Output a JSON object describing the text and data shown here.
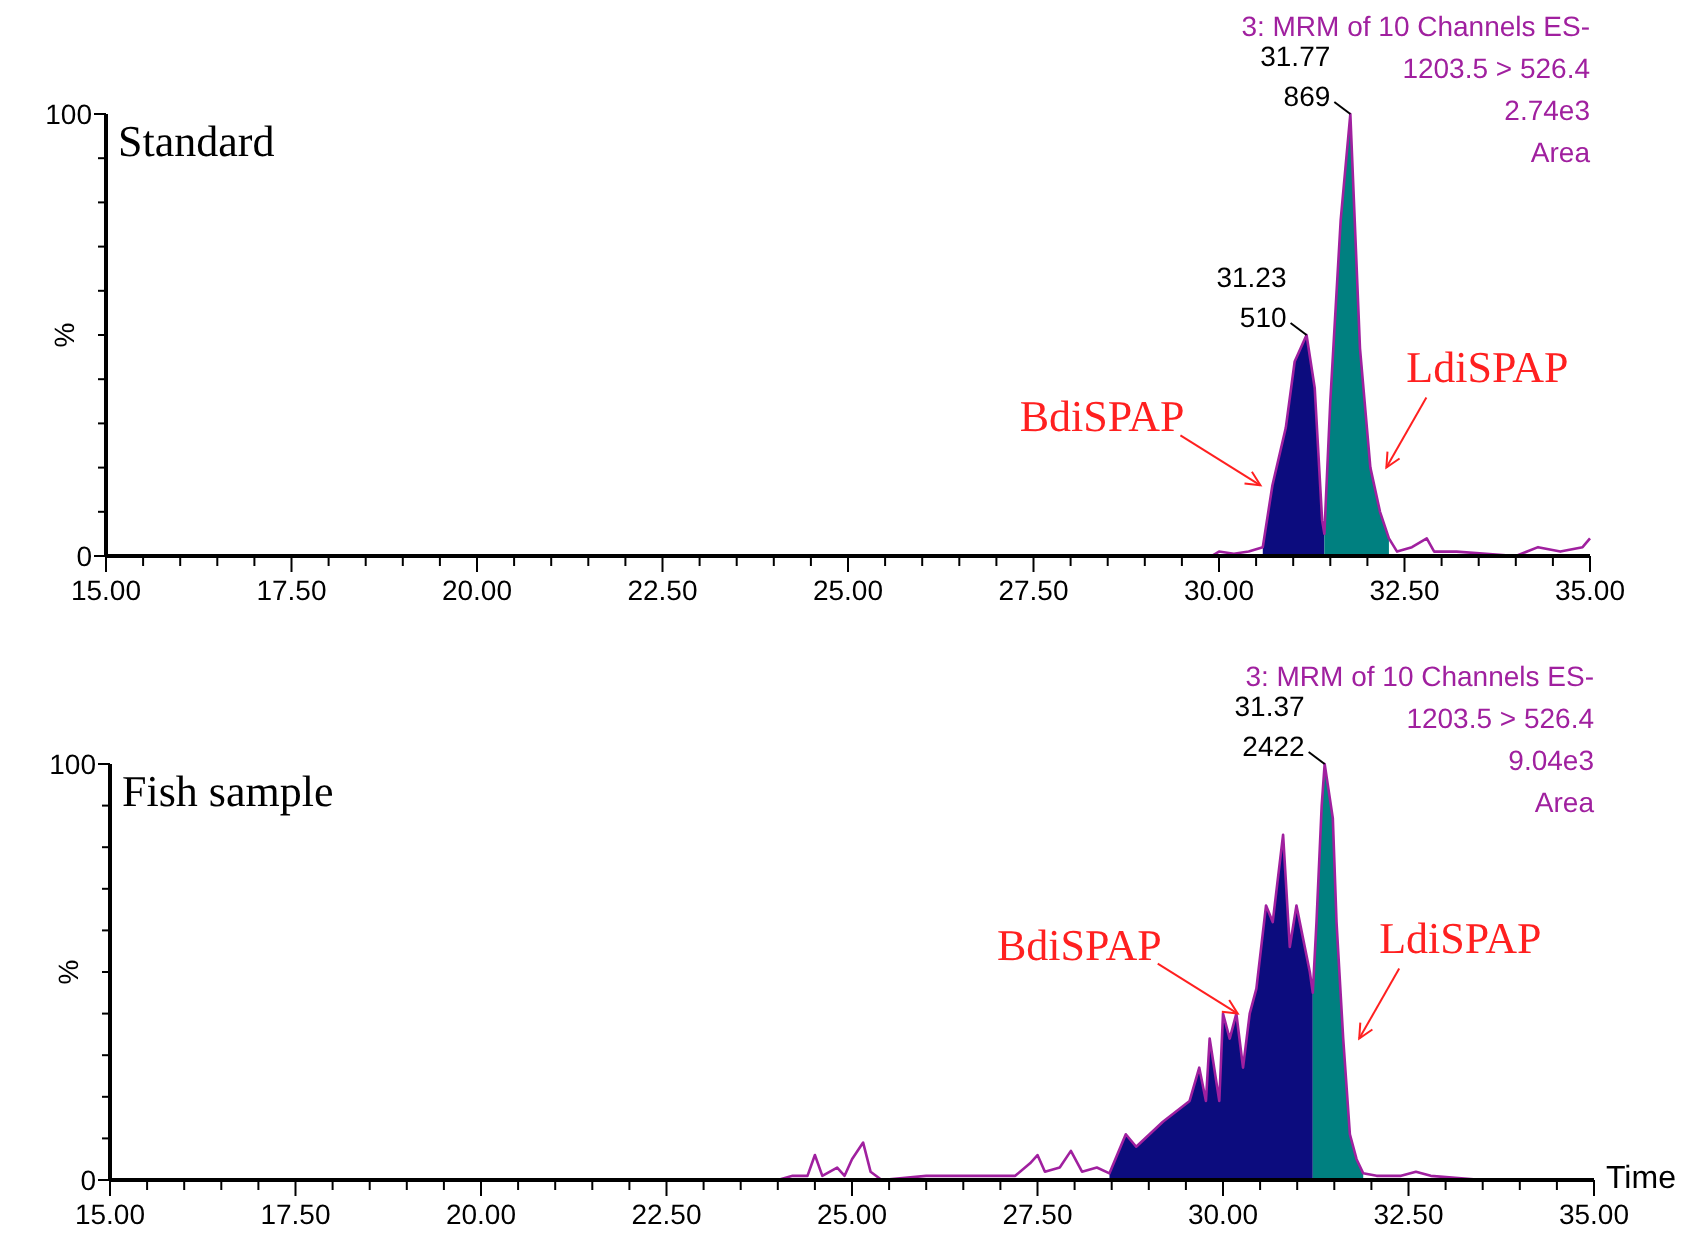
{
  "chart_data": [
    {
      "type": "line",
      "title": "Standard",
      "ylabel": "%",
      "xlim": [
        15,
        35
      ],
      "ylim": [
        0,
        100
      ],
      "xticks": [
        {
          "value": 15,
          "label": "15.00"
        },
        {
          "value": 15.5,
          "label": null
        },
        {
          "value": 16,
          "label": null
        },
        {
          "value": 16.5,
          "label": null
        },
        {
          "value": 17,
          "label": null
        },
        {
          "value": 17.5,
          "label": "17.50"
        },
        {
          "value": 18,
          "label": null
        },
        {
          "value": 18.5,
          "label": null
        },
        {
          "value": 19,
          "label": null
        },
        {
          "value": 19.5,
          "label": null
        },
        {
          "value": 20,
          "label": "20.00"
        },
        {
          "value": 20.5,
          "label": null
        },
        {
          "value": 21,
          "label": null
        },
        {
          "value": 21.5,
          "label": null
        },
        {
          "value": 22,
          "label": null
        },
        {
          "value": 22.5,
          "label": "22.50"
        },
        {
          "value": 23,
          "label": null
        },
        {
          "value": 23.5,
          "label": null
        },
        {
          "value": 24,
          "label": null
        },
        {
          "value": 24.5,
          "label": null
        },
        {
          "value": 25,
          "label": "25.00"
        },
        {
          "value": 25.5,
          "label": null
        },
        {
          "value": 26,
          "label": null
        },
        {
          "value": 26.5,
          "label": null
        },
        {
          "value": 27,
          "label": null
        },
        {
          "value": 27.5,
          "label": "27.50"
        },
        {
          "value": 28,
          "label": null
        },
        {
          "value": 28.5,
          "label": null
        },
        {
          "value": 29,
          "label": null
        },
        {
          "value": 29.5,
          "label": null
        },
        {
          "value": 30,
          "label": "30.00"
        },
        {
          "value": 30.5,
          "label": null
        },
        {
          "value": 31,
          "label": null
        },
        {
          "value": 31.5,
          "label": null
        },
        {
          "value": 32,
          "label": null
        },
        {
          "value": 32.5,
          "label": "32.50"
        },
        {
          "value": 33,
          "label": null
        },
        {
          "value": 33.5,
          "label": null
        },
        {
          "value": 34,
          "label": null
        },
        {
          "value": 34.5,
          "label": null
        },
        {
          "value": 35,
          "label": "35.00"
        }
      ],
      "yticks": [
        {
          "value": 0,
          "label": "0"
        },
        {
          "value": 10,
          "label": null
        },
        {
          "value": 20,
          "label": null
        },
        {
          "value": 30,
          "label": null
        },
        {
          "value": 40,
          "label": null
        },
        {
          "value": 50,
          "label": null
        },
        {
          "value": 60,
          "label": null
        },
        {
          "value": 70,
          "label": null
        },
        {
          "value": 80,
          "label": null
        },
        {
          "value": 90,
          "label": null
        },
        {
          "value": 100,
          "label": "100"
        }
      ],
      "series": [
        {
          "type": "area",
          "name": "BdiSPAP",
          "color": "#0c0c7e",
          "x": [
            30.59,
            30.72,
            30.9,
            31.02,
            31.18,
            31.29,
            31.39,
            31.42
          ],
          "values": [
            2,
            16,
            29,
            44,
            50,
            38,
            8,
            5
          ]
        },
        {
          "type": "area",
          "name": "LdiSPAP",
          "color": "#008080",
          "x": [
            31.42,
            31.5,
            31.64,
            31.77,
            31.9,
            32.04,
            32.17,
            32.29
          ],
          "values": [
            5,
            35,
            76,
            100,
            47,
            20,
            10,
            4
          ]
        },
        {
          "type": "line",
          "color": "#a0209f",
          "x": [
            20,
            29.9,
            30.0,
            30.2,
            30.4,
            30.59,
            30.72,
            30.9,
            31.02,
            31.18,
            31.29,
            31.39,
            31.42,
            31.5,
            31.64,
            31.77,
            31.9,
            32.04,
            32.17,
            32.29,
            32.4,
            32.6,
            32.8,
            32.9,
            33.2,
            34.0,
            34.3,
            34.6,
            34.9,
            35
          ],
          "values": [
            0,
            0,
            1,
            0.5,
            1,
            2,
            16,
            29,
            44,
            50,
            38,
            8,
            5,
            35,
            76,
            100,
            47,
            20,
            10,
            4,
            1,
            2,
            4,
            1,
            1,
            0,
            2,
            1,
            2,
            4
          ]
        }
      ],
      "annotations": [
        "3: MRM of 10 Channels ES-",
        "1203.5 > 526.4",
        "2.74e3",
        "Area",
        {
          "text": "31.77\n869",
          "x": 31.77,
          "y": 100
        },
        {
          "text": "31.23\n510",
          "x": 31.18,
          "y": 50
        }
      ]
    },
    {
      "type": "line",
      "title": "Fish sample",
      "ylabel": "%",
      "xlabel": "Time",
      "xlim": [
        15,
        35
      ],
      "ylim": [
        0,
        100
      ],
      "xticks": [
        {
          "value": 15,
          "label": "15.00"
        },
        {
          "value": 15.5,
          "label": null
        },
        {
          "value": 16,
          "label": null
        },
        {
          "value": 16.5,
          "label": null
        },
        {
          "value": 17,
          "label": null
        },
        {
          "value": 17.5,
          "label": "17.50"
        },
        {
          "value": 18,
          "label": null
        },
        {
          "value": 18.5,
          "label": null
        },
        {
          "value": 19,
          "label": null
        },
        {
          "value": 19.5,
          "label": null
        },
        {
          "value": 20,
          "label": "20.00"
        },
        {
          "value": 20.5,
          "label": null
        },
        {
          "value": 21,
          "label": null
        },
        {
          "value": 21.5,
          "label": null
        },
        {
          "value": 22,
          "label": null
        },
        {
          "value": 22.5,
          "label": "22.50"
        },
        {
          "value": 23,
          "label": null
        },
        {
          "value": 23.5,
          "label": null
        },
        {
          "value": 24,
          "label": null
        },
        {
          "value": 24.5,
          "label": null
        },
        {
          "value": 25,
          "label": "25.00"
        },
        {
          "value": 25.5,
          "label": null
        },
        {
          "value": 26,
          "label": null
        },
        {
          "value": 26.5,
          "label": null
        },
        {
          "value": 27,
          "label": null
        },
        {
          "value": 27.5,
          "label": "27.50"
        },
        {
          "value": 28,
          "label": null
        },
        {
          "value": 28.5,
          "label": null
        },
        {
          "value": 29,
          "label": null
        },
        {
          "value": 29.5,
          "label": null
        },
        {
          "value": 30,
          "label": "30.00"
        },
        {
          "value": 30.5,
          "label": null
        },
        {
          "value": 31,
          "label": null
        },
        {
          "value": 31.5,
          "label": null
        },
        {
          "value": 32,
          "label": null
        },
        {
          "value": 32.5,
          "label": "32.50"
        },
        {
          "value": 33,
          "label": null
        },
        {
          "value": 33.5,
          "label": null
        },
        {
          "value": 34,
          "label": null
        },
        {
          "value": 34.5,
          "label": null
        },
        {
          "value": 35,
          "label": "35.00"
        }
      ],
      "yticks": [
        {
          "value": 0,
          "label": "0"
        },
        {
          "value": 10,
          "label": null
        },
        {
          "value": 20,
          "label": null
        },
        {
          "value": 30,
          "label": null
        },
        {
          "value": 40,
          "label": null
        },
        {
          "value": 50,
          "label": null
        },
        {
          "value": 60,
          "label": null
        },
        {
          "value": 70,
          "label": null
        },
        {
          "value": 80,
          "label": null
        },
        {
          "value": 90,
          "label": null
        },
        {
          "value": 100,
          "label": "100"
        }
      ],
      "series": [
        {
          "type": "area",
          "name": "BdiSPAP",
          "color": "#0c0c7e",
          "x": [
            28.47,
            28.69,
            28.83,
            29.19,
            29.55,
            29.68,
            29.77,
            29.82,
            29.95,
            30.0,
            30.09,
            30.18,
            30.27,
            30.36,
            30.45,
            30.58,
            30.67,
            30.81,
            30.9,
            30.99,
            31.08,
            31.17,
            31.21
          ],
          "values": [
            1.6,
            11,
            8,
            14,
            19,
            27,
            19,
            34,
            19,
            40,
            34,
            40,
            27,
            40,
            46,
            66,
            62,
            83,
            56,
            66,
            58,
            50,
            45
          ]
        },
        {
          "type": "area",
          "name": "LdiSPAP",
          "color": "#008080",
          "x": [
            31.21,
            31.26,
            31.33,
            31.37,
            31.48,
            31.53,
            31.62,
            31.71,
            31.8,
            31.89
          ],
          "values": [
            45,
            62,
            90,
            100,
            87,
            62,
            34,
            11,
            5,
            1.6
          ]
        },
        {
          "type": "line",
          "color": "#a0209f",
          "x": [
            20,
            24.0,
            24.2,
            24.4,
            24.5,
            24.6,
            24.8,
            24.9,
            25.0,
            25.15,
            25.25,
            25.4,
            26,
            27.2,
            27.4,
            27.5,
            27.6,
            27.8,
            27.95,
            28.1,
            28.3,
            28.47,
            28.69,
            28.83,
            29.19,
            29.55,
            29.68,
            29.77,
            29.82,
            29.95,
            30.0,
            30.09,
            30.18,
            30.27,
            30.36,
            30.45,
            30.58,
            30.67,
            30.81,
            30.9,
            30.99,
            31.08,
            31.17,
            31.21,
            31.26,
            31.33,
            31.37,
            31.48,
            31.53,
            31.62,
            31.71,
            31.8,
            31.89,
            32.07,
            32.4,
            32.6,
            32.8,
            33.5,
            35
          ],
          "values": [
            0,
            0,
            1,
            1,
            6,
            1,
            3,
            1,
            5,
            9,
            2,
            0,
            1,
            1,
            4,
            6,
            2,
            3,
            7,
            2,
            3,
            1.6,
            11,
            8,
            14,
            19,
            27,
            19,
            34,
            19,
            40,
            34,
            40,
            27,
            40,
            46,
            66,
            62,
            83,
            56,
            66,
            58,
            50,
            45,
            62,
            90,
            100,
            87,
            62,
            34,
            11,
            5,
            1.6,
            1,
            1,
            2,
            1,
            0,
            0
          ]
        }
      ],
      "annotations": [
        "3: MRM of 10 Channels ES-",
        "1203.5 > 526.4",
        "9.04e3",
        "Area",
        {
          "text": "31.37\n2422",
          "x": 31.37,
          "y": 100
        }
      ]
    }
  ]
}
